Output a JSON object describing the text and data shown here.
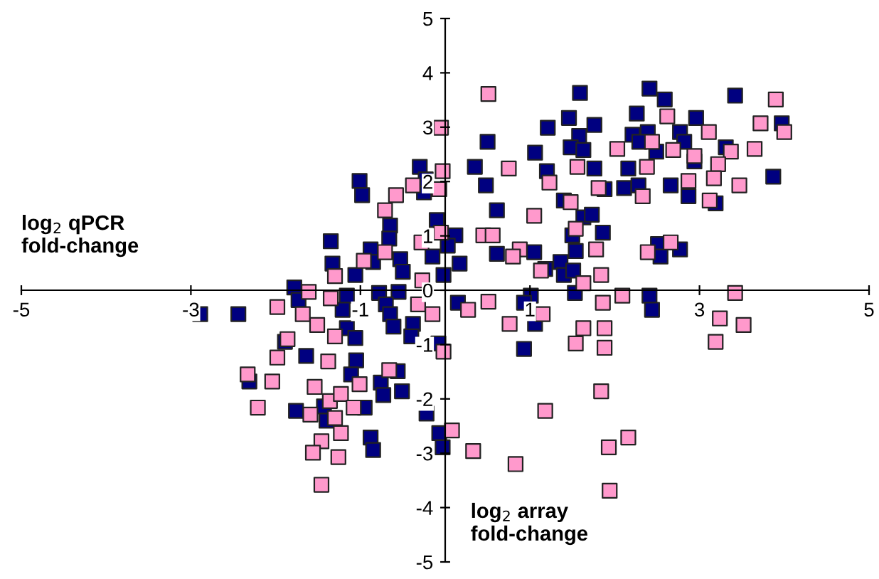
{
  "chart_data": {
    "type": "scatter",
    "xlabel": "log$_{2}$ array\nfold-change",
    "ylabel": "log$_{2}$ qPCR\nfold-change",
    "xlim": [
      -5,
      5
    ],
    "ylim": [
      -5,
      5
    ],
    "xticks": [
      -5,
      -3,
      -1,
      1,
      3,
      5
    ],
    "yticks": [
      -5,
      -4,
      -3,
      -2,
      -1,
      0,
      1,
      2,
      3,
      4,
      5
    ],
    "marker": "square",
    "grid": false,
    "series": [
      {
        "color": "#000080",
        "x": [
          -0.3,
          -1.01,
          -0.98,
          -0.25,
          -0.1,
          -0.65,
          -0.66,
          -1.35,
          -0.88,
          -0.85,
          -0.53,
          -1.33,
          -0.5,
          -1.06,
          -0.15,
          -0.02,
          -1.78,
          -1.73,
          -0.78,
          -0.55,
          -1.16,
          -1.21,
          -0.7,
          -0.65,
          -0.61,
          -0.38,
          -0.4,
          -1.16,
          -1.06,
          -2.44,
          -1.89,
          -1.64,
          -0.08,
          -1.05,
          -1.11,
          -0.56,
          -0.76,
          -0.73,
          -0.51,
          -0.25,
          -0.22,
          -2.31,
          -1.76,
          -1.43,
          -1.4,
          -0.95,
          -0.88,
          -0.85,
          -0.07,
          -0.03,
          -2.89,
          1.59,
          2.41,
          2.59,
          2.26,
          1.46,
          1.76,
          1.21,
          0.5,
          1.58,
          1.48,
          1.63,
          2.21,
          2.39,
          2.29,
          2.49,
          1.06,
          0.35,
          1.2,
          1.76,
          2.16,
          0.48,
          1.88,
          2.11,
          2.28,
          2.66,
          -0.23,
          1.4,
          0.61,
          1.63,
          1.73,
          1.86,
          1.5,
          1.54,
          0.12,
          0.03,
          0.17,
          0.61,
          1.05,
          1.18,
          1.36,
          1.4,
          1.51,
          1.53,
          1.01,
          2.51,
          2.54,
          2.41,
          0.15,
          0.93,
          3.42,
          2.96,
          2.77,
          2.82,
          3.31,
          2.94,
          2.87,
          3.19,
          3.97,
          3.87,
          2.77,
          2.44,
          1.06,
          0.93
        ],
        "values": [
          2.27,
          2.01,
          1.75,
          1.8,
          1.29,
          1.19,
          0.95,
          0.9,
          0.75,
          0.52,
          0.57,
          0.49,
          0.34,
          0.28,
          0.62,
          0.28,
          0.05,
          -0.18,
          -0.05,
          -0.03,
          -0.1,
          -0.36,
          -0.26,
          -0.44,
          -0.67,
          -0.62,
          -0.85,
          -0.7,
          -0.88,
          -0.44,
          -0.95,
          -1.21,
          -0.98,
          -1.29,
          -1.55,
          -1.49,
          -1.7,
          -1.93,
          -1.86,
          -2.04,
          -2.27,
          -1.68,
          -2.22,
          -2.14,
          -2.4,
          -2.16,
          -2.71,
          -2.94,
          -2.63,
          -2.89,
          -0.44,
          3.63,
          3.71,
          3.51,
          3.25,
          3.17,
          3.04,
          2.99,
          2.73,
          2.84,
          2.63,
          2.58,
          2.86,
          2.91,
          2.73,
          2.55,
          2.53,
          2.27,
          2.19,
          2.24,
          2.24,
          1.93,
          1.86,
          1.88,
          1.93,
          1.93,
          2.04,
          1.65,
          1.47,
          1.34,
          1.39,
          1.06,
          1.01,
          0.72,
          1.01,
          0.82,
          0.49,
          0.67,
          0.7,
          0.39,
          0.52,
          0.28,
          0.36,
          -0.05,
          -0.1,
          0.85,
          0.62,
          -0.1,
          -0.23,
          -0.23,
          3.58,
          3.17,
          2.91,
          2.73,
          2.63,
          2.37,
          1.73,
          1.6,
          3.07,
          2.09,
          0.75,
          -0.36,
          -0.62,
          -1.08
        ]
      },
      {
        "color": "#ff99cc",
        "x": [
          -0.03,
          -0.38,
          -0.07,
          -0.58,
          -0.71,
          -0.28,
          -0.05,
          -0.71,
          -0.96,
          -1.3,
          -0.27,
          -1.61,
          -1.35,
          -1.98,
          -1.68,
          -1.51,
          -0.32,
          -0.15,
          -1.3,
          -1.86,
          -1.98,
          -1.38,
          -2.33,
          -2.04,
          -0.66,
          -1.01,
          -1.54,
          -2.21,
          -1.59,
          -1.36,
          -1.23,
          -1.08,
          -1.3,
          -1.23,
          -1.46,
          -1.56,
          -1.26,
          -1.46,
          -0.02,
          0.51,
          -0.05,
          0.75,
          1.23,
          1.56,
          2.03,
          2.38,
          2.33,
          2.62,
          2.69,
          2.44,
          1.81,
          1.05,
          1.48,
          1.54,
          1.78,
          0.45,
          0.56,
          0.88,
          0.8,
          1.13,
          1.63,
          1.84,
          2.09,
          1.86,
          0.51,
          2.39,
          2.66,
          3.9,
          3.11,
          3.72,
          4.0,
          3.65,
          3.37,
          2.94,
          3.22,
          3.17,
          2.87,
          3.47,
          3.12,
          3.42,
          3.24,
          3.52,
          3.19,
          0.76,
          1.15,
          1.63,
          1.88,
          1.54,
          1.88,
          1.84,
          1.18,
          2.16,
          1.93,
          0.33,
          0.83,
          1.94,
          0.08,
          0.27
        ],
        "values": [
          2.19,
          1.93,
          1.86,
          1.75,
          1.47,
          0.88,
          1.06,
          0.7,
          0.54,
          0.26,
          0.18,
          -0.03,
          -0.15,
          -0.31,
          -0.44,
          -0.64,
          -0.26,
          -0.44,
          -0.85,
          -0.9,
          -1.24,
          -1.31,
          -1.55,
          -1.68,
          -1.47,
          -1.73,
          -1.78,
          -2.16,
          -2.29,
          -2.04,
          -1.91,
          -2.16,
          -2.35,
          -2.63,
          -2.78,
          -2.99,
          -3.07,
          -3.58,
          -1.13,
          3.61,
          2.99,
          2.24,
          1.98,
          2.27,
          2.6,
          2.27,
          1.73,
          3.2,
          2.58,
          2.73,
          1.88,
          1.37,
          1.62,
          1.13,
          0.75,
          1.01,
          1.01,
          0.75,
          0.62,
          0.36,
          0.13,
          0.28,
          -0.1,
          -0.23,
          -0.21,
          0.7,
          0.88,
          3.51,
          2.91,
          3.07,
          2.91,
          2.6,
          2.55,
          2.47,
          2.32,
          2.06,
          2.01,
          1.93,
          1.65,
          -0.05,
          -0.52,
          -0.64,
          -0.95,
          -0.62,
          -0.44,
          -0.7,
          -0.7,
          -0.98,
          -1.06,
          -1.86,
          -2.22,
          -2.71,
          -2.89,
          -2.96,
          -3.2,
          -3.69,
          -2.58,
          -0.36
        ]
      }
    ]
  }
}
